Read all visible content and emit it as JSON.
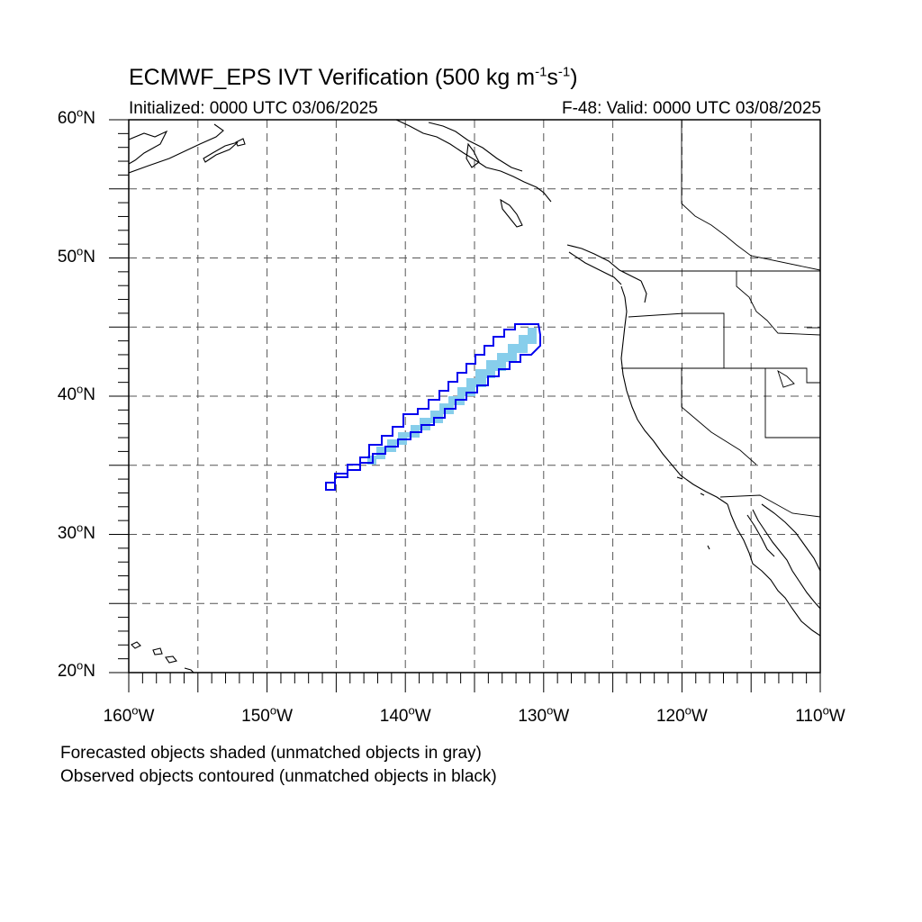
{
  "title": {
    "main": "ECMWF_EPS IVT Verification (500 kg m",
    "exp1": "-1",
    "mid": "s",
    "exp2": "-1",
    "end": ")"
  },
  "subtitle": {
    "initialized": "Initialized: 0000 UTC 03/06/2025",
    "valid": "F-48: Valid: 0000 UTC 03/08/2025"
  },
  "map": {
    "lat_range": [
      20,
      60
    ],
    "lon_range": [
      -160,
      -110
    ],
    "grid_spacing_deg": 5,
    "gridline_style": "dashed",
    "lat_labels": [
      {
        "value": "60",
        "unit": "o",
        "hem": "N"
      },
      {
        "value": "50",
        "unit": "o",
        "hem": "N"
      },
      {
        "value": "40",
        "unit": "o",
        "hem": "N"
      },
      {
        "value": "30",
        "unit": "o",
        "hem": "N"
      },
      {
        "value": "20",
        "unit": "o",
        "hem": "N"
      }
    ],
    "lon_labels": [
      {
        "value": "160",
        "unit": "o",
        "hem": "W"
      },
      {
        "value": "150",
        "unit": "o",
        "hem": "W"
      },
      {
        "value": "140",
        "unit": "o",
        "hem": "W"
      },
      {
        "value": "130",
        "unit": "o",
        "hem": "W"
      },
      {
        "value": "120",
        "unit": "o",
        "hem": "W"
      },
      {
        "value": "110",
        "unit": "o",
        "hem": "W"
      }
    ],
    "colors": {
      "forecast_fill": "#87ceeb",
      "observed_contour": "#0000ee",
      "coastline": "#000000",
      "grid": "#555555"
    },
    "forecast_object": {
      "description": "matched forecast IVT object",
      "axis_start": [
        -142.5,
        35.5
      ],
      "axis_end": [
        -131,
        44.8
      ]
    },
    "observed_object": {
      "axis_start": [
        -145.6,
        33.3
      ],
      "axis_end": [
        -130.2,
        45.2
      ]
    }
  },
  "notes": {
    "line1": "Forecasted objects shaded (unmatched objects in gray)",
    "line2": "Observed objects contoured (unmatched objects in black)"
  }
}
